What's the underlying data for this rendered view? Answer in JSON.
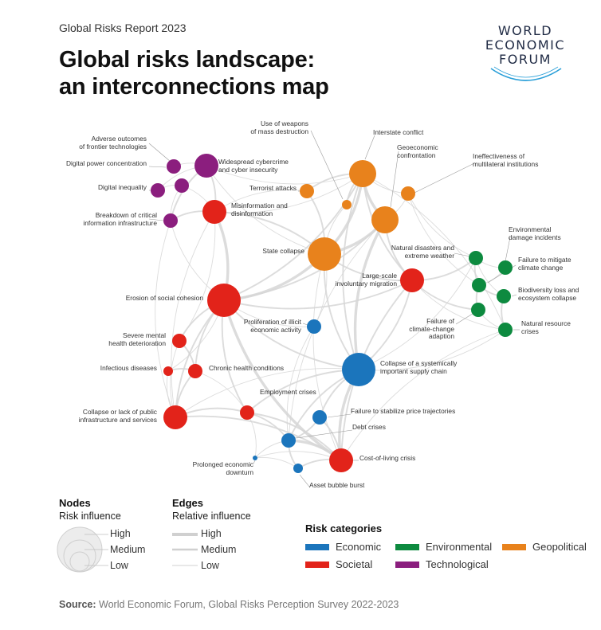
{
  "header": {
    "kicker": "Global Risks Report 2023",
    "title_line1": "Global risks landscape:",
    "title_line2": "an interconnections map"
  },
  "logo": {
    "line1": "WORLD",
    "line2": "ECONOMIC",
    "line3": "FORUM"
  },
  "colors": {
    "economic": "#1b75bc",
    "societal": "#e2231a",
    "environmental": "#0d8a3f",
    "geopolitical": "#e8821c",
    "technological": "#8b1e7e",
    "edge": "#d4d4d4"
  },
  "nodes": [
    {
      "id": "adverse-outcomes-frontier-tech",
      "cat": "technological",
      "size": "s",
      "label": [
        "Adverse outcomes",
        "of frontier technologies"
      ]
    },
    {
      "id": "digital-power-concentration",
      "cat": "technological",
      "size": "s",
      "label": [
        "Digital power concentration"
      ]
    },
    {
      "id": "digital-inequality",
      "cat": "technological",
      "size": "s",
      "label": [
        "Digital inequality"
      ]
    },
    {
      "id": "widespread-cybercrime",
      "cat": "technological",
      "size": "m",
      "label": [
        "Widespread cybercrime",
        "and cyber insecurity"
      ]
    },
    {
      "id": "technological-small",
      "cat": "technological",
      "size": "s",
      "label": []
    },
    {
      "id": "breakdown-critical-info-infra",
      "cat": "technological",
      "size": "s",
      "label": [
        "Breakdown of critical",
        "information infrastructure"
      ]
    },
    {
      "id": "misinformation",
      "cat": "societal",
      "size": "m",
      "label": [
        "Misinformation and",
        "disinformation"
      ]
    },
    {
      "id": "use-of-weapons-mass-destruction",
      "cat": "geopolitical",
      "size": "xs",
      "label": [
        "Use of weapons",
        "of mass destruction"
      ]
    },
    {
      "id": "interstate-conflict",
      "cat": "geopolitical",
      "size": "l",
      "label": [
        "Interstate conflict"
      ]
    },
    {
      "id": "geoeconomic-confrontation",
      "cat": "geopolitical",
      "size": "l",
      "label": [
        "Geoeconomic",
        "confrontation"
      ]
    },
    {
      "id": "ineffectiveness-multilateral",
      "cat": "geopolitical",
      "size": "s",
      "label": [
        "Ineffectiveness of",
        "multilateral institutions"
      ]
    },
    {
      "id": "terrorist-attacks",
      "cat": "geopolitical",
      "size": "s",
      "label": [
        "Terrorist attacks"
      ]
    },
    {
      "id": "state-collapse",
      "cat": "geopolitical",
      "size": "xl",
      "label": [
        "State collapse"
      ]
    },
    {
      "id": "natural-disasters",
      "cat": "environmental",
      "size": "s",
      "label": [
        "Natural disasters and",
        "extreme weather"
      ]
    },
    {
      "id": "environmental-damage",
      "cat": "environmental",
      "size": "s",
      "label": [
        "Environmental",
        "damage incidents"
      ]
    },
    {
      "id": "failure-mitigate-climate",
      "cat": "environmental",
      "size": "s",
      "label": [
        "Failure to mitigate",
        "climate change"
      ]
    },
    {
      "id": "biodiversity-loss",
      "cat": "environmental",
      "size": "s",
      "label": [
        "Biodiversity loss and",
        "ecosystem collapse"
      ]
    },
    {
      "id": "failure-climate-adaption",
      "cat": "environmental",
      "size": "s",
      "label": [
        "Failure of",
        "climate-change",
        "adaption"
      ]
    },
    {
      "id": "natural-resource-crises",
      "cat": "environmental",
      "size": "s",
      "label": [
        "Natural resource",
        "crises"
      ]
    },
    {
      "id": "large-scale-involuntary-migration",
      "cat": "societal",
      "size": "m",
      "label": [
        "Large-scale",
        "involuntary migration"
      ]
    },
    {
      "id": "erosion-social-cohesion",
      "cat": "societal",
      "size": "xl",
      "label": [
        "Erosion of social cohesion"
      ]
    },
    {
      "id": "proliferation-illicit-economic",
      "cat": "economic",
      "size": "s",
      "label": [
        "Proliferation of illicit",
        "economic activity"
      ]
    },
    {
      "id": "severe-mental-health",
      "cat": "societal",
      "size": "s",
      "label": [
        "Severe mental",
        "health deterioration"
      ]
    },
    {
      "id": "infectious-diseases",
      "cat": "societal",
      "size": "xs",
      "label": [
        "Infectious diseases"
      ]
    },
    {
      "id": "chronic-health-conditions",
      "cat": "societal",
      "size": "s",
      "label": [
        "Chronic health conditions"
      ]
    },
    {
      "id": "collapse-supply-chain",
      "cat": "economic",
      "size": "xl",
      "label": [
        "Collapse of a systemically",
        "important supply chain"
      ]
    },
    {
      "id": "employment-crises",
      "cat": "societal",
      "size": "s",
      "label": [
        "Employment crises"
      ]
    },
    {
      "id": "collapse-public-infrastructure",
      "cat": "societal",
      "size": "m",
      "label": [
        "Collapse or lack of public",
        "infrastructure and services"
      ]
    },
    {
      "id": "failure-stabilize-price",
      "cat": "economic",
      "size": "s",
      "label": [
        "Failure to stabilize price trajectories"
      ]
    },
    {
      "id": "debt-crises",
      "cat": "economic",
      "size": "s",
      "label": [
        "Debt crises"
      ]
    },
    {
      "id": "prolonged-economic-downturn",
      "cat": "economic",
      "size": "xxs",
      "label": [
        "Prolonged economic",
        "downturn"
      ]
    },
    {
      "id": "cost-of-living-crisis",
      "cat": "societal",
      "size": "m",
      "label": [
        "Cost-of-living crisis"
      ]
    },
    {
      "id": "asset-bubble-burst",
      "cat": "economic",
      "size": "xs",
      "label": [
        "Asset bubble burst"
      ]
    }
  ],
  "legend": {
    "nodes_title": "Nodes",
    "nodes_sub": "Risk influence",
    "node_levels": [
      "High",
      "Medium",
      "Low"
    ],
    "edges_title": "Edges",
    "edges_sub": "Relative influence",
    "edge_levels": [
      "High",
      "Medium",
      "Low"
    ],
    "categories_title": "Risk categories",
    "categories": [
      {
        "key": "economic",
        "label": "Economic",
        "color": "#1b75bc"
      },
      {
        "key": "environmental",
        "label": "Environmental",
        "color": "#0d8a3f"
      },
      {
        "key": "geopolitical",
        "label": "Geopolitical",
        "color": "#e8821c"
      },
      {
        "key": "societal",
        "label": "Societal",
        "color": "#e2231a"
      },
      {
        "key": "technological",
        "label": "Technological",
        "color": "#8b1e7e"
      }
    ]
  },
  "source": {
    "prefix": "Source:",
    "text": "World Economic Forum, Global Risks Perception Survey 2022-2023"
  }
}
